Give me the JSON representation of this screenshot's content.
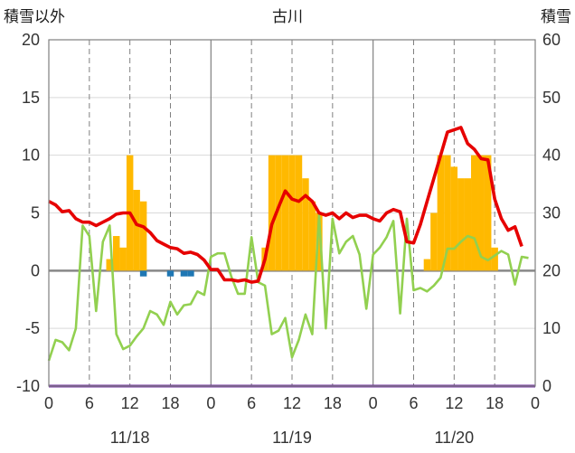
{
  "chart_data": {
    "type": "bar+line",
    "title": "古川",
    "left_axis_title": "積雪以外",
    "right_axis_title": "積雪",
    "left_ylim": [
      -10,
      20
    ],
    "left_ticks": [
      "20",
      "15",
      "10",
      "5",
      "0",
      "-5",
      "-10"
    ],
    "right_ylim": [
      0,
      60
    ],
    "right_ticks": [
      "60",
      "50",
      "40",
      "30",
      "20",
      "10",
      "0"
    ],
    "x_hours_range": [
      0,
      72
    ],
    "x_tick_labels": [
      "0",
      "6",
      "12",
      "18",
      "0",
      "6",
      "12",
      "18",
      "0",
      "6",
      "12",
      "18",
      "0"
    ],
    "date_labels": [
      "11/18",
      "11/19",
      "11/20"
    ],
    "grid": "vertical dashed at 6-hour ticks, solid at day boundaries, horizontal gridlines at every 5 units",
    "colors": {
      "snowfall_bar": "#ffb900",
      "snowfall_negative_bar": "#1f77b4",
      "temperature_line": "#e60000",
      "wind_line": "#92d050",
      "bottom_line": "#7030a0",
      "zero_line": "#888888"
    },
    "series": [
      {
        "type": "bar",
        "values": [
          [
            9,
            1
          ],
          [
            10,
            3
          ],
          [
            11,
            2
          ],
          [
            12,
            10
          ],
          [
            13,
            7
          ],
          [
            14,
            6
          ],
          [
            23,
            0
          ],
          [
            24,
            0
          ],
          [
            32,
            2
          ],
          [
            33,
            10
          ],
          [
            34,
            10
          ],
          [
            35,
            10
          ],
          [
            36,
            10
          ],
          [
            37,
            10
          ],
          [
            38,
            8
          ],
          [
            39,
            6
          ],
          [
            40,
            5
          ],
          [
            56,
            1
          ],
          [
            57,
            5
          ],
          [
            58,
            10
          ],
          [
            59,
            10
          ],
          [
            60,
            9
          ],
          [
            61,
            8
          ],
          [
            62,
            8
          ],
          [
            63,
            10
          ],
          [
            64,
            10
          ],
          [
            65,
            10
          ],
          [
            66,
            2
          ]
        ],
        "negative_values": [
          [
            14,
            -0.5
          ],
          [
            18,
            -0.5
          ],
          [
            20,
            -0.5
          ],
          [
            21,
            -0.5
          ]
        ]
      },
      {
        "type": "line",
        "values": [
          [
            0,
            6.0
          ],
          [
            1,
            5.7
          ],
          [
            2,
            5.1
          ],
          [
            3,
            5.2
          ],
          [
            4,
            4.5
          ],
          [
            5,
            4.2
          ],
          [
            6,
            4.2
          ],
          [
            7,
            3.9
          ],
          [
            8,
            4.2
          ],
          [
            9,
            4.5
          ],
          [
            10,
            4.9
          ],
          [
            11,
            5.0
          ],
          [
            12,
            5.0
          ],
          [
            13,
            4.0
          ],
          [
            14,
            3.8
          ],
          [
            15,
            3.3
          ],
          [
            16,
            2.6
          ],
          [
            17,
            2.3
          ],
          [
            18,
            2.0
          ],
          [
            19,
            1.9
          ],
          [
            20,
            1.5
          ],
          [
            21,
            1.6
          ],
          [
            22,
            1.4
          ],
          [
            23,
            0.9
          ],
          [
            24,
            0.1
          ],
          [
            25,
            0.1
          ],
          [
            26,
            -0.8
          ],
          [
            27,
            -0.8
          ],
          [
            28,
            -0.9
          ],
          [
            29,
            -0.8
          ],
          [
            30,
            -1.0
          ],
          [
            31,
            -0.9
          ],
          [
            32,
            1.0
          ],
          [
            33,
            4.0
          ],
          [
            34,
            5.5
          ],
          [
            35,
            6.9
          ],
          [
            36,
            6.2
          ],
          [
            37,
            6.0
          ],
          [
            38,
            6.5
          ],
          [
            39,
            6.0
          ],
          [
            40,
            5.0
          ],
          [
            41,
            4.8
          ],
          [
            42,
            5.0
          ],
          [
            43,
            4.5
          ],
          [
            44,
            5.0
          ],
          [
            45,
            4.6
          ],
          [
            46,
            4.8
          ],
          [
            47,
            4.8
          ],
          [
            48,
            4.5
          ],
          [
            49,
            4.3
          ],
          [
            50,
            5.0
          ],
          [
            51,
            5.3
          ],
          [
            52,
            5.1
          ],
          [
            53,
            2.5
          ],
          [
            54,
            2.4
          ],
          [
            55,
            4.0
          ],
          [
            56,
            6.0
          ],
          [
            57,
            8.0
          ],
          [
            58,
            10.0
          ],
          [
            59,
            12.0
          ],
          [
            60,
            12.2
          ],
          [
            61,
            12.4
          ],
          [
            62,
            11.0
          ],
          [
            63,
            10.5
          ],
          [
            64,
            9.7
          ],
          [
            65,
            9.6
          ],
          [
            66,
            6.2
          ],
          [
            67,
            4.5
          ],
          [
            68,
            3.5
          ],
          [
            69,
            3.8
          ],
          [
            70,
            2.1
          ]
        ]
      },
      {
        "type": "line",
        "values": [
          [
            0,
            -7.8
          ],
          [
            1,
            -6.0
          ],
          [
            2,
            -6.2
          ],
          [
            3,
            -6.9
          ],
          [
            4,
            -5.0
          ],
          [
            5,
            3.9
          ],
          [
            6,
            3.0
          ],
          [
            7,
            -3.5
          ],
          [
            8,
            2.5
          ],
          [
            9,
            3.9
          ],
          [
            10,
            -5.5
          ],
          [
            11,
            -6.8
          ],
          [
            12,
            -6.5
          ],
          [
            13,
            -5.7
          ],
          [
            14,
            -5.0
          ],
          [
            15,
            -3.5
          ],
          [
            16,
            -3.8
          ],
          [
            17,
            -4.7
          ],
          [
            18,
            -2.7
          ],
          [
            19,
            -3.8
          ],
          [
            20,
            -3.0
          ],
          [
            21,
            -2.9
          ],
          [
            22,
            -1.8
          ],
          [
            23,
            -2.1
          ],
          [
            24,
            1.2
          ],
          [
            25,
            1.5
          ],
          [
            26,
            1.5
          ],
          [
            27,
            -0.5
          ],
          [
            28,
            -2.0
          ],
          [
            29,
            -2.0
          ],
          [
            30,
            2.9
          ],
          [
            31,
            -1.0
          ],
          [
            32,
            -1.3
          ],
          [
            33,
            -5.5
          ],
          [
            34,
            -5.2
          ],
          [
            35,
            -4.1
          ],
          [
            36,
            -7.5
          ],
          [
            37,
            -6.0
          ],
          [
            38,
            -3.8
          ],
          [
            39,
            -5.5
          ],
          [
            40,
            4.8
          ],
          [
            41,
            -5.0
          ],
          [
            42,
            4.5
          ],
          [
            43,
            1.5
          ],
          [
            44,
            2.5
          ],
          [
            45,
            3.0
          ],
          [
            46,
            1.4
          ],
          [
            47,
            -3.3
          ],
          [
            48,
            1.4
          ],
          [
            49,
            2.0
          ],
          [
            50,
            2.9
          ],
          [
            51,
            4.3
          ],
          [
            52,
            -3.7
          ],
          [
            53,
            4.5
          ],
          [
            54,
            -1.7
          ],
          [
            55,
            -1.5
          ],
          [
            56,
            -1.8
          ],
          [
            57,
            -1.3
          ],
          [
            58,
            -0.6
          ],
          [
            59,
            1.9
          ],
          [
            60,
            1.9
          ],
          [
            61,
            2.5
          ],
          [
            62,
            3.0
          ],
          [
            63,
            2.8
          ],
          [
            64,
            1.2
          ],
          [
            65,
            0.9
          ],
          [
            66,
            1.3
          ],
          [
            67,
            1.7
          ],
          [
            68,
            1.4
          ],
          [
            69,
            -1.2
          ],
          [
            70,
            1.2
          ],
          [
            71,
            1.1
          ]
        ]
      },
      {
        "type": "line",
        "values": [
          [
            0,
            -10
          ],
          [
            72,
            -10
          ]
        ]
      }
    ]
  }
}
